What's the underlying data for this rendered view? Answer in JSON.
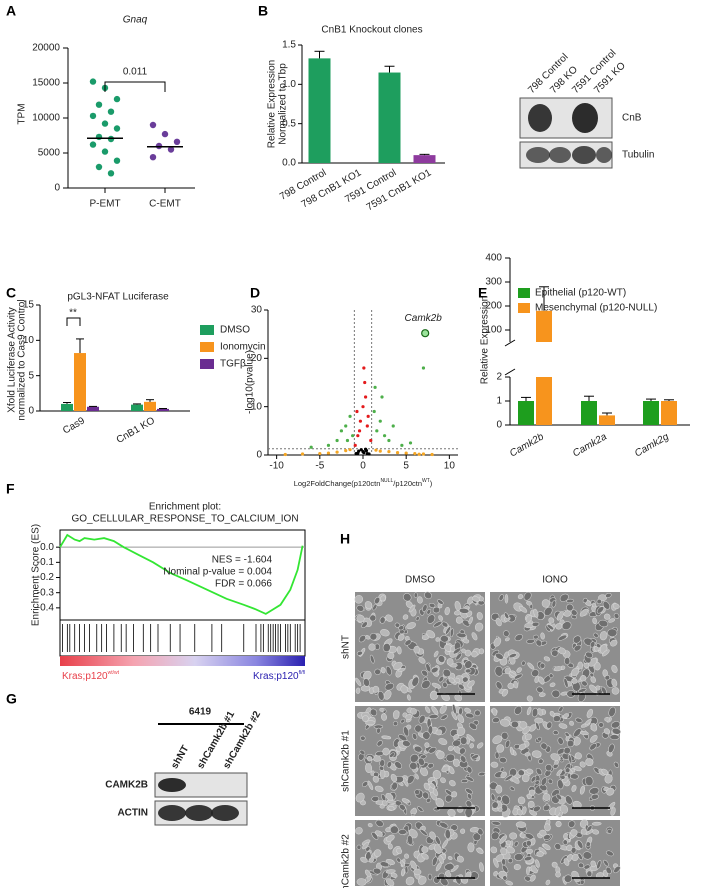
{
  "panel_labels": [
    "A",
    "B",
    "C",
    "D",
    "E",
    "F",
    "G",
    "H"
  ],
  "chart_data": [
    {
      "type": "strip",
      "title": "Gnaq",
      "y_label": "TPM",
      "categories": [
        "P-EMT",
        "C-EMT"
      ],
      "values": [
        [
          15200,
          14300,
          12700,
          11900,
          10900,
          10300,
          9200,
          8500,
          7300,
          7000,
          6200,
          5200,
          3900,
          3000,
          2100
        ],
        [
          9000,
          7700,
          6600,
          6000,
          5500,
          4400
        ]
      ],
      "medians": [
        7100,
        5900
      ],
      "colors": [
        "#1a9b6a",
        "#6a3d9a"
      ],
      "ylim": [
        0,
        20000
      ],
      "yticks": [
        0,
        5000,
        10000,
        15000,
        20000
      ],
      "annotation": "0.011"
    },
    {
      "type": "bar",
      "title": "CnB1 Knockout clones",
      "y_label": [
        "Relative Expression",
        "Normalized to Tbp"
      ],
      "categories": [
        "798 Control",
        "798 CnB1 KO1",
        "7591 Control",
        "7591 CnB1 KO1"
      ],
      "values": [
        1.33,
        0,
        1.15,
        0.1
      ],
      "errors": [
        0.09,
        0,
        0.08,
        0.01
      ],
      "colors": [
        "#1e9e5e",
        "#1e9e5e",
        "#1e9e5e",
        "#8e3a9e"
      ],
      "ylim": [
        0,
        1.5
      ],
      "yticks": [
        {
          "value": 0,
          "label": "0.0"
        },
        0.5,
        {
          "value": 1,
          "label": "1.0"
        },
        1.5
      ]
    },
    {
      "type": "grouped_bar",
      "title": "pGL3-NFAT Luciferase",
      "y_label": [
        "Xfold Luciferase Activity",
        "normalized to  Cas9 Control"
      ],
      "categories": [
        "Cas9",
        "CnB1 KO"
      ],
      "series": [
        {
          "name": "DMSO",
          "color": "#1e9e5e",
          "values": [
            1.0,
            0.9
          ],
          "errors": [
            0.2,
            0.1
          ]
        },
        {
          "name": "Ionomycin",
          "color": "#f7941d",
          "values": [
            8.2,
            1.3
          ],
          "errors": [
            2.0,
            0.3
          ]
        },
        {
          "name": "TGFβ",
          "color": "#6a2c91",
          "values": [
            0.6,
            0.3
          ],
          "errors": [
            0.05,
            0.05
          ]
        }
      ],
      "ylim": [
        0,
        15
      ],
      "yticks": [
        0,
        5,
        10,
        15
      ],
      "annotation": "**"
    },
    {
      "type": "volcano",
      "y_label": "-log10(pvalue)",
      "x_label_parts": [
        "Log2FoldChange(p120ctn",
        "NULL",
        "/p120ctn",
        "WT",
        ")"
      ],
      "xlim": [
        -11,
        11
      ],
      "xticks": [
        -10,
        -5,
        0,
        5,
        10
      ],
      "ylim": [
        0,
        30
      ],
      "yticks": [
        0,
        10,
        20,
        30
      ],
      "thresholds": {
        "x": [
          -1,
          1
        ],
        "y": 1.3
      },
      "series": [
        {
          "color": "#000000",
          "x": [
            -0.8,
            -0.5,
            -0.2,
            0.1,
            0.4,
            0.7,
            -0.6,
            0.3,
            0,
            0.5
          ],
          "y": [
            0.3,
            0.8,
            1.1,
            0.5,
            0.9,
            0.2,
            0.4,
            1.2,
            0.7,
            0.3
          ]
        },
        {
          "color": "#e41a1c",
          "x": [
            -0.9,
            -0.6,
            -0.3,
            0,
            0.3,
            0.6,
            0.9,
            -0.4,
            0.2,
            0.5,
            -0.7,
            0.1
          ],
          "y": [
            2,
            4,
            7,
            10,
            12,
            8,
            3,
            5,
            15,
            6,
            9,
            18
          ]
        },
        {
          "color": "#4daf4a",
          "x": [
            -4,
            -3,
            -2.5,
            -2,
            -1.5,
            -1.2,
            1.3,
            1.6,
            2,
            2.5,
            3,
            3.5,
            4.5,
            -6,
            5.5,
            2.2,
            -1.8,
            1.4,
            7
          ],
          "y": [
            2,
            3,
            5,
            6,
            8,
            4,
            9,
            5,
            7,
            4,
            3,
            6,
            2,
            1.6,
            2.5,
            12,
            3,
            14,
            18
          ]
        },
        {
          "color": "#f5a623",
          "x": [
            -9,
            -7,
            -5,
            -3,
            -2,
            -1.5,
            1.5,
            2,
            3,
            4,
            5,
            6,
            7,
            8,
            -4,
            6.5
          ],
          "y": [
            0.1,
            0.2,
            0.3,
            0.6,
            0.9,
            1.1,
            1.0,
            0.8,
            0.7,
            0.5,
            0.4,
            0.3,
            0.2,
            0.1,
            0.4,
            0.15
          ]
        }
      ],
      "highlight": {
        "label": "Camk2b",
        "x": 7.2,
        "y": 25.2
      }
    },
    {
      "type": "broken_bar",
      "y_label": "Relative Expression",
      "categories": [
        "Camk2b",
        "Camk2a",
        "Camk2g"
      ],
      "series": [
        {
          "name": "Epithelial (p120-WT)",
          "color": "#1e9e1e",
          "values": [
            1,
            1,
            1
          ],
          "errors": [
            0.15,
            0.2,
            0.08
          ]
        },
        {
          "name": "Mesenchymal (p120-NULL)",
          "color": "#f7941d",
          "values": [
            180,
            0.4,
            1.0
          ],
          "errors": [
            100,
            0.1,
            0.05
          ]
        }
      ],
      "ylim_lower": [
        0,
        2
      ],
      "yticks_lower": [
        0,
        1,
        2
      ],
      "ylim_upper": [
        50,
        400
      ],
      "yticks_upper": [
        100,
        200,
        300,
        400
      ]
    },
    {
      "type": "gsea",
      "title": [
        "Enrichment plot:",
        "GO_CELLULAR_RESPONSE_TO_CALCIUM_ION"
      ],
      "y_label": "Enrichment Score (ES)",
      "x": [
        0,
        3,
        6,
        8,
        10,
        14,
        18,
        22,
        26,
        32,
        38,
        45,
        52,
        60,
        68,
        75,
        80,
        84,
        86,
        90,
        94,
        97,
        99
      ],
      "values": [
        0.0,
        0.08,
        0.05,
        0.04,
        0.06,
        0.05,
        0.06,
        0.04,
        0.0,
        -0.05,
        -0.1,
        -0.17,
        -0.22,
        -0.28,
        -0.34,
        -0.38,
        -0.41,
        -0.44,
        -0.42,
        -0.38,
        -0.28,
        -0.15,
        0.01
      ],
      "color": "#33e633",
      "xlim": [
        0,
        100
      ],
      "ylim": [
        -0.48,
        0.1
      ],
      "yticks": [
        {
          "value": 0,
          "label": "0.0"
        },
        -0.1,
        -0.2,
        -0.3,
        -0.4
      ],
      "hits": [
        1,
        3,
        4,
        6,
        8,
        10,
        12,
        15,
        17,
        19,
        22,
        25,
        27,
        30,
        34,
        37,
        40,
        45,
        49,
        55,
        62,
        66,
        75,
        80,
        82,
        83,
        85,
        86,
        87,
        88,
        89,
        90,
        92,
        93,
        94,
        96,
        97,
        98
      ],
      "stats": [
        "NES = -1.604",
        "Nominal p-value = 0.004",
        "FDR = 0.066"
      ],
      "phenotype_labels": [
        {
          "text": "Kras;p120",
          "sup": "wt/wt"
        },
        {
          "text": "Kras;p120",
          "sup": "fl/fl"
        }
      ]
    }
  ],
  "blots": [
    {
      "lanes": [
        "798 Control",
        "798 KO",
        "7591 Control",
        "7591 KO"
      ],
      "rows": [
        "CnB",
        "Tubulin"
      ]
    },
    {
      "title": "6419",
      "lanes": [
        "shNT",
        "shCamk2b #1",
        "shCamk2b #2"
      ],
      "rows": [
        "CAMK2B",
        "ACTIN"
      ]
    }
  ],
  "micrographs": {
    "columns": [
      "DMSO",
      "IONO"
    ],
    "rows": [
      "shNT",
      "shCamk2b #1",
      "shCamk2b #2"
    ]
  }
}
